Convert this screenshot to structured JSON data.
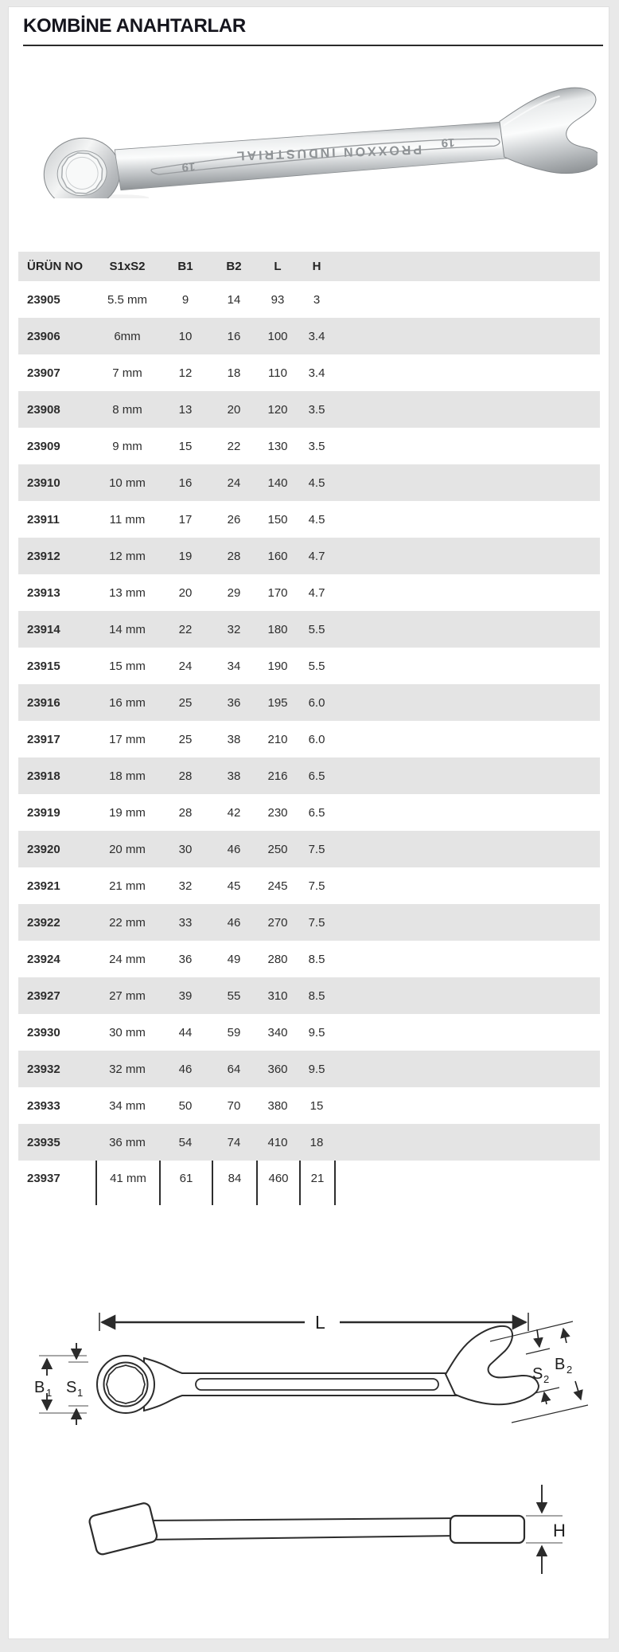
{
  "page": {
    "title": "KOMBİNE ANAHTARLAR"
  },
  "product_photo": {
    "brand_text": "PROXXON INDUSTRIAL",
    "size_marking_left": "19",
    "size_marking_right": "19"
  },
  "table": {
    "columns": [
      "ÜRÜN NO",
      "S1xS2",
      "B1",
      "B2",
      "L",
      "H"
    ],
    "rows": [
      [
        "23905",
        "5.5 mm",
        "9",
        "14",
        "93",
        "3"
      ],
      [
        "23906",
        "6mm",
        "10",
        "16",
        "100",
        "3.4"
      ],
      [
        "23907",
        "7 mm",
        "12",
        "18",
        "110",
        "3.4"
      ],
      [
        "23908",
        "8 mm",
        "13",
        "20",
        "120",
        "3.5"
      ],
      [
        "23909",
        "9 mm",
        "15",
        "22",
        "130",
        "3.5"
      ],
      [
        "23910",
        "10 mm",
        "16",
        "24",
        "140",
        "4.5"
      ],
      [
        "23911",
        "11 mm",
        "17",
        "26",
        "150",
        "4.5"
      ],
      [
        "23912",
        "12 mm",
        "19",
        "28",
        "160",
        "4.7"
      ],
      [
        "23913",
        "13 mm",
        "20",
        "29",
        "170",
        "4.7"
      ],
      [
        "23914",
        "14 mm",
        "22",
        "32",
        "180",
        "5.5"
      ],
      [
        "23915",
        "15 mm",
        "24",
        "34",
        "190",
        "5.5"
      ],
      [
        "23916",
        "16 mm",
        "25",
        "36",
        "195",
        "6.0"
      ],
      [
        "23917",
        "17 mm",
        "25",
        "38",
        "210",
        "6.0"
      ],
      [
        "23918",
        "18 mm",
        "28",
        "38",
        "216",
        "6.5"
      ],
      [
        "23919",
        "19 mm",
        "28",
        "42",
        "230",
        "6.5"
      ],
      [
        "23920",
        "20 mm",
        "30",
        "46",
        "250",
        "7.5"
      ],
      [
        "23921",
        "21 mm",
        "32",
        "45",
        "245",
        "7.5"
      ],
      [
        "23922",
        "22 mm",
        "33",
        "46",
        "270",
        "7.5"
      ],
      [
        "23924",
        "24 mm",
        "36",
        "49",
        "280",
        "8.5"
      ],
      [
        "23927",
        "27 mm",
        "39",
        "55",
        "310",
        "8.5"
      ],
      [
        "23930",
        "30 mm",
        "44",
        "59",
        "340",
        "9.5"
      ],
      [
        "23932",
        "32 mm",
        "46",
        "64",
        "360",
        "9.5"
      ],
      [
        "23933",
        "34 mm",
        "50",
        "70",
        "380",
        "15"
      ],
      [
        "23935",
        "36 mm",
        "54",
        "74",
        "410",
        "18"
      ],
      [
        "23937",
        "41 mm",
        "61",
        "84",
        "460",
        "21"
      ]
    ]
  },
  "dimensions": {
    "top_view": {
      "length": "L",
      "b1_base": "B",
      "b1_sub": "1",
      "s1_base": "S",
      "s1_sub": "1",
      "s2_base": "S",
      "s2_sub": "2",
      "b2_base": "B",
      "b2_sub": "2"
    },
    "side_view": {
      "h": "H"
    }
  },
  "colors": {
    "row_alt": "#e4e4e4",
    "rule": "#2b2b2b",
    "text": "#2d2d2d",
    "dimension_gray": "#a6a6a6"
  }
}
